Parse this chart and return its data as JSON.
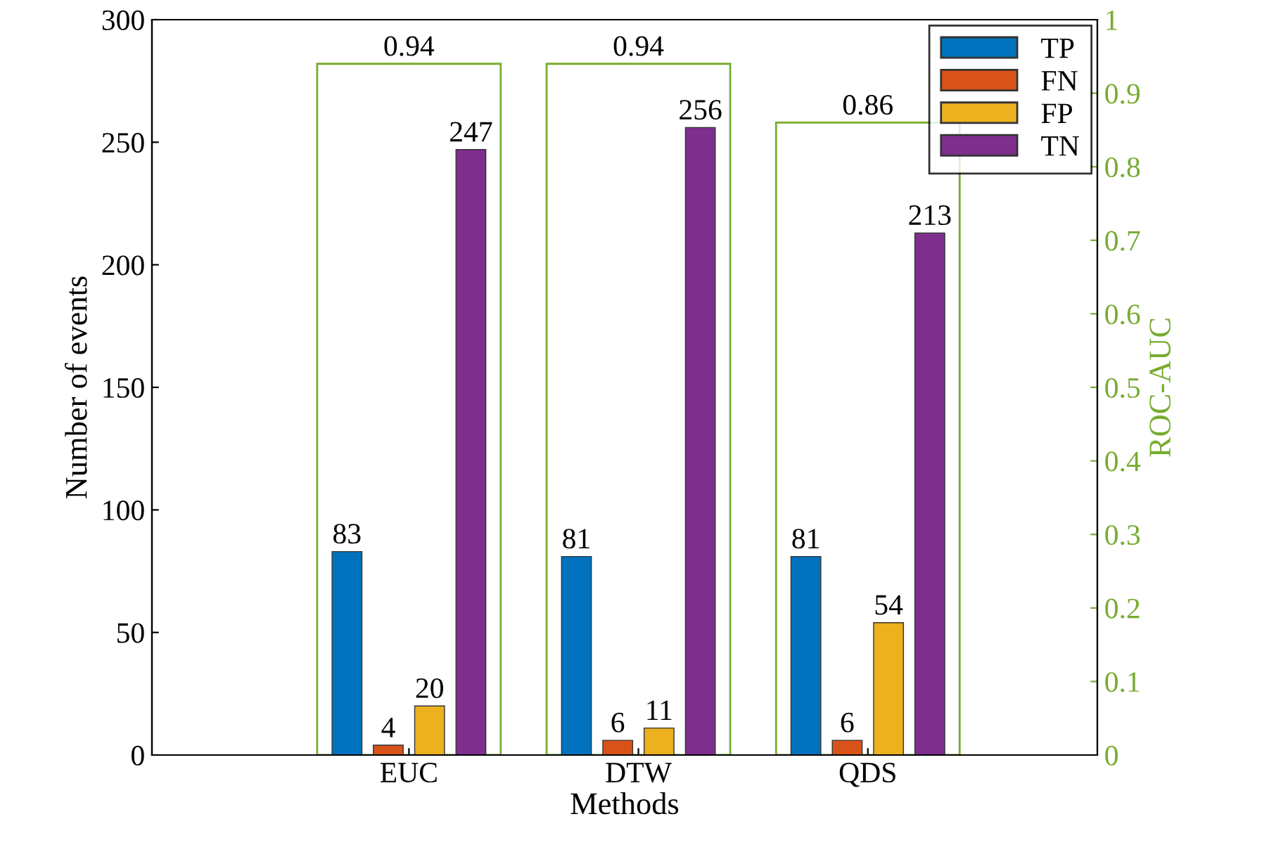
{
  "chart_data": {
    "type": "bar",
    "xlabel": "Methods",
    "ylabel": "Number of events",
    "y2label": "ROC-AUC",
    "categories": [
      "EUC",
      "DTW",
      "QDS"
    ],
    "series": [
      {
        "name": "TP",
        "color": "#0072bd",
        "values": [
          83,
          81,
          81
        ]
      },
      {
        "name": "FN",
        "color": "#d95319",
        "values": [
          4,
          6,
          6
        ]
      },
      {
        "name": "FP",
        "color": "#edb120",
        "values": [
          20,
          11,
          54
        ]
      },
      {
        "name": "TN",
        "color": "#7e2f8e",
        "values": [
          247,
          256,
          213
        ]
      },
      {
        "color": "#77ac30",
        "values": [
          0.94,
          0.94,
          0.86
        ],
        "axis": "y2"
      }
    ],
    "ylim": [
      0,
      300
    ],
    "yticks": [
      0,
      50,
      100,
      150,
      200,
      250,
      300
    ],
    "y2lim": [
      0,
      1
    ],
    "y2ticks": [
      0,
      0.1,
      0.2,
      0.3,
      0.4,
      0.5,
      0.6,
      0.7,
      0.8,
      0.9,
      1
    ],
    "data_labels": true,
    "grid": false,
    "legend": "top right"
  }
}
